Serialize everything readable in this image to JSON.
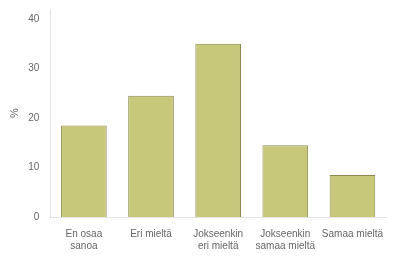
{
  "chart_data": {
    "type": "bar",
    "categories": [
      "En osaa\nsanoa",
      "Eri mieltä",
      "Jokseenkin\neri mieltä",
      "Jokseenkin\nsamaa mieltä",
      "Samaa mieltä"
    ],
    "values": [
      18.5,
      24.5,
      35.0,
      14.5,
      8.5
    ],
    "color": "#c8c87a",
    "ylabel": "%",
    "ylim": [
      0,
      42
    ],
    "yticks": [
      0,
      10,
      20,
      30,
      40
    ],
    "grid": false
  }
}
